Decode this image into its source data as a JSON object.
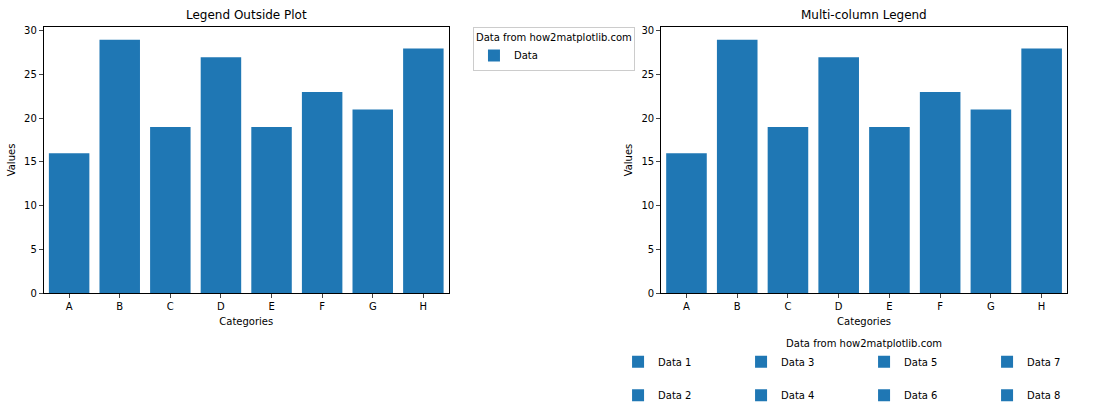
{
  "chart_data": [
    {
      "type": "bar",
      "title": "Legend Outside Plot",
      "x_label": "Categories",
      "y_label": "Values",
      "categories": [
        "A",
        "B",
        "C",
        "D",
        "E",
        "F",
        "G",
        "H"
      ],
      "series": [
        {
          "name": "Data",
          "color": "#1f77b4",
          "values": [
            16,
            29,
            19,
            27,
            19,
            23,
            21,
            28
          ]
        }
      ],
      "ylim": [
        0,
        30.45
      ],
      "yticks": [
        0,
        5,
        10,
        15,
        20,
        25,
        30
      ],
      "legend": "right",
      "legend_title": "Data from how2matplotlib.com"
    },
    {
      "type": "bar",
      "title": "Multi-column Legend",
      "x_label": "Categories",
      "y_label": "Values",
      "categories": [
        "A",
        "B",
        "C",
        "D",
        "E",
        "F",
        "G",
        "H"
      ],
      "values": [
        16,
        29,
        19,
        27,
        19,
        23,
        21,
        28
      ],
      "color": "#1f77b4",
      "legend_labels": [
        "Data 1",
        "Data 2",
        "Data 3",
        "Data 4",
        "Data 5",
        "Data 6",
        "Data 7",
        "Data 8"
      ],
      "ylim": [
        0,
        30.45
      ],
      "yticks": [
        0,
        5,
        10,
        15,
        20,
        25,
        30
      ],
      "legend": "bottom",
      "legend_title": "Data from how2matplotlib.com"
    }
  ]
}
